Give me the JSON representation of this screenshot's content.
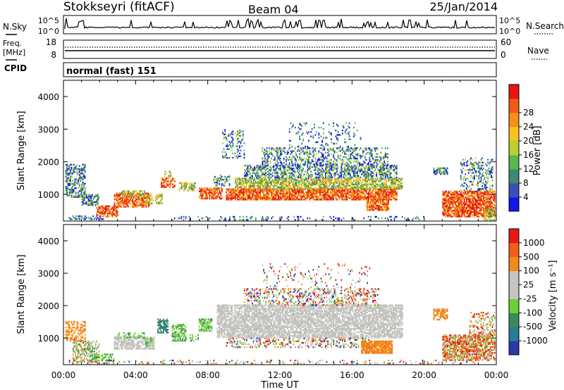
{
  "header": {
    "station": "Stokkseyri (fitACF)",
    "beam": "Beam 04",
    "date": "25/Jan/2014"
  },
  "noise_panel": {
    "left_label": "N.Sky",
    "right_label": "N.Search",
    "left_ticks": [
      "10^5",
      "10^0"
    ],
    "right_ticks": [
      "10^5",
      "10^0"
    ]
  },
  "freq_panel": {
    "left_label_1": "Freq.",
    "left_label_2": "[MHz]",
    "right_label": "Nave",
    "left_ticks": [
      "18",
      "8"
    ],
    "right_ticks": [
      "60",
      "0"
    ],
    "cpid_label": "CPID"
  },
  "cpid_text": "normal (fast) 151",
  "x_axis": {
    "ticks": [
      "00:00",
      "04:00",
      "08:00",
      "12:00",
      "16:00",
      "20:00",
      "00:00"
    ],
    "label": "Time UT"
  },
  "chart_data": [
    {
      "type": "heatmap",
      "title": "",
      "xlabel": "Time UT",
      "ylabel": "Slant Range [km]",
      "xlim": [
        0,
        24
      ],
      "ylim": [
        180,
        4500
      ],
      "yticks": [
        "1000",
        "2000",
        "3000",
        "4000"
      ],
      "colorbar": {
        "label": "Power [dB]",
        "ticks": [
          "4",
          "8",
          "12",
          "16",
          "20",
          "24",
          "28"
        ],
        "colors": [
          "#1515e6",
          "#3b4fb8",
          "#3f8a6d",
          "#57b84f",
          "#b8d030",
          "#f5c31b",
          "#f59019",
          "#f05a16",
          "#e81515"
        ]
      }
    },
    {
      "type": "heatmap",
      "title": "",
      "xlabel": "Time UT",
      "ylabel": "Slant Range [km]",
      "xlim": [
        0,
        24
      ],
      "ylim": [
        180,
        4500
      ],
      "yticks": [
        "1000",
        "2000",
        "3000",
        "4000"
      ],
      "colorbar": {
        "label": "Velocity [m s⁻¹]",
        "ticks": [
          "1000",
          "500",
          "100",
          "25",
          "-25",
          "-100",
          "-500",
          "-1000"
        ],
        "colors": [
          "#2a3aa8",
          "#2a7a9a",
          "#3a8a5a",
          "#6ccf3a",
          "#c4c4c0",
          "#c4c4c0",
          "#f08a1a",
          "#f0601a",
          "#e81818"
        ]
      }
    }
  ]
}
